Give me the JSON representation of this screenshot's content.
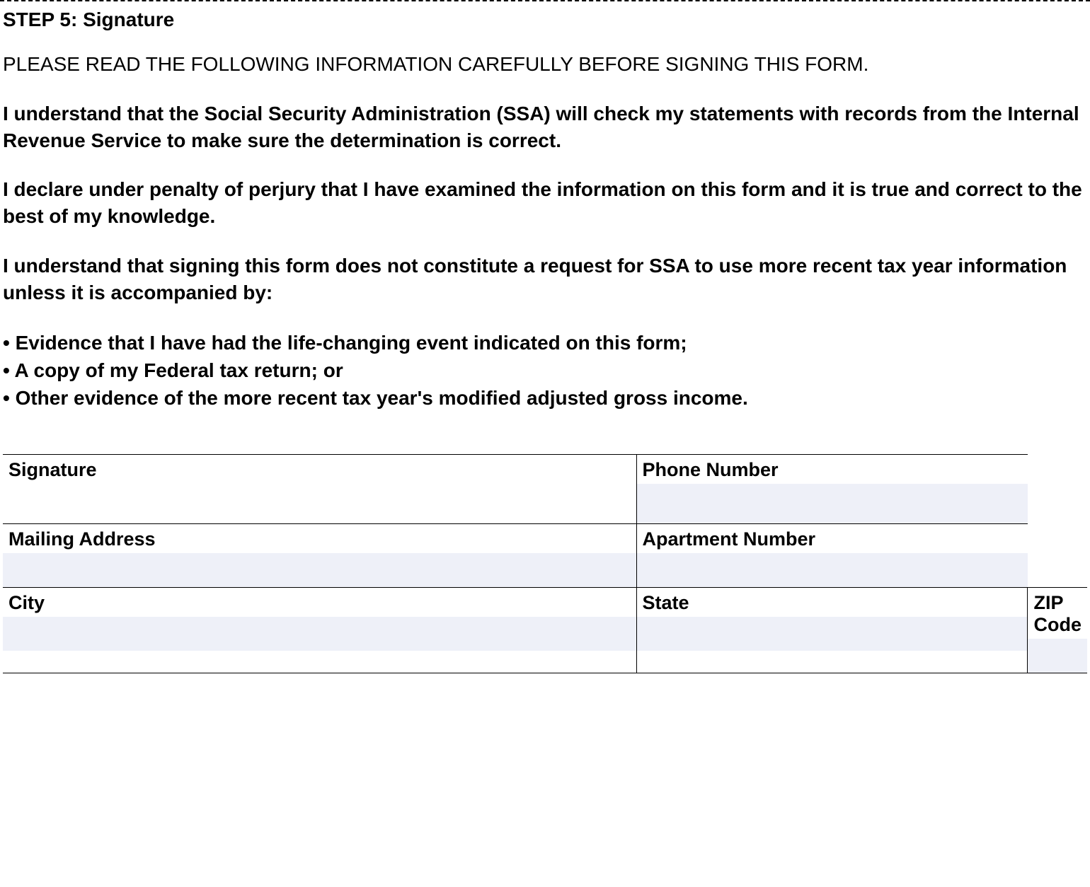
{
  "step_title": "STEP 5:  Signature",
  "warning": "PLEASE READ THE FOLLOWING INFORMATION CAREFULLY BEFORE SIGNING THIS FORM.",
  "para1": "I understand that the Social Security Administration (SSA) will check my statements with records from the Internal Revenue Service to make sure the determination is correct.",
  "para2": "I declare under penalty of perjury that I have examined the information on this form and  it is true and correct to the best of my knowledge.",
  "para3": "I understand that signing this form does not constitute a request for SSA to use more recent tax year information unless it is accompanied by:",
  "bullets": [
    "• Evidence that I have had the life-changing event indicated on this form;",
    "• A copy of my Federal tax return; or",
    "• Other evidence of the more recent tax year's modified adjusted gross income."
  ],
  "fields": {
    "signature": {
      "label": "Signature",
      "value": ""
    },
    "phone": {
      "label": "Phone Number",
      "value": ""
    },
    "mailing": {
      "label": "Mailing Address",
      "value": ""
    },
    "apartment": {
      "label": "Apartment Number",
      "value": ""
    },
    "city": {
      "label": "City",
      "value": ""
    },
    "state": {
      "label": "State",
      "value": ""
    },
    "zip": {
      "label": "ZIP Code",
      "value": ""
    }
  },
  "styling": {
    "body_font": "Arial",
    "title_fontsize": 28,
    "body_fontsize": 28,
    "label_fontsize": 27,
    "input_bg": "#eef0f8",
    "border_color": "#000000",
    "text_color": "#000000",
    "background_color": "#ffffff"
  }
}
